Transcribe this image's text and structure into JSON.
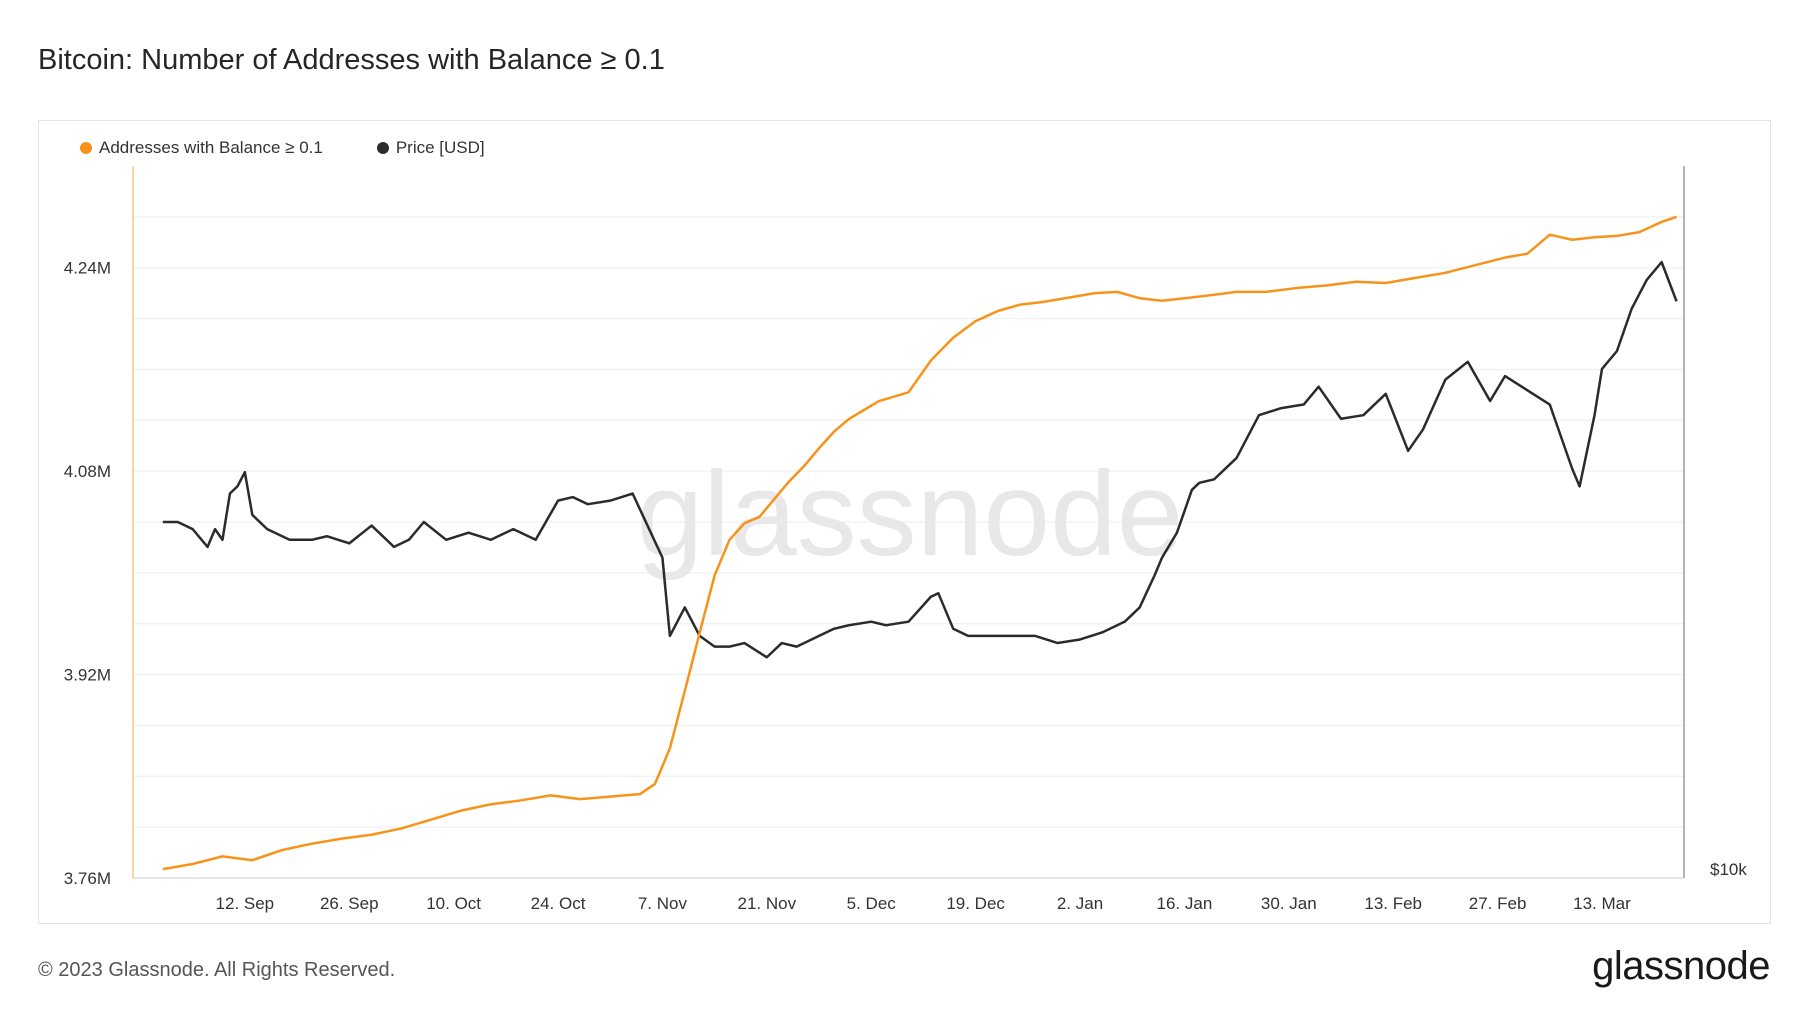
{
  "header": {
    "title": "Bitcoin: Number of Addresses with Balance ≥ 0.1"
  },
  "footer": {
    "copyright": "© 2023 Glassnode. All Rights Reserved.",
    "logo": "glassnode"
  },
  "watermark": "glassnode",
  "colors": {
    "addresses": "#f7931a",
    "price": "#2b2b2b",
    "grid": "#eeeeee",
    "axis": "#f3c98d"
  },
  "chart_data": {
    "type": "line",
    "title": "Bitcoin: Number of Addresses with Balance ≥ 0.1",
    "legend_position": "top-left",
    "grid": true,
    "x_ticks": [
      "12. Sep",
      "26. Sep",
      "10. Oct",
      "24. Oct",
      "7. Nov",
      "21. Nov",
      "5. Dec",
      "19. Dec",
      "2. Jan",
      "16. Jan",
      "30. Jan",
      "13. Feb",
      "27. Feb",
      "13. Mar"
    ],
    "y_ticks": [
      "4.24M",
      "4.08M",
      "3.92M",
      "3.76M"
    ],
    "ylim": [
      3.76,
      4.32
    ],
    "y_unit": "M",
    "right_axis_label": "$10k",
    "series": [
      {
        "name": "Addresses with Balance ≥ 0.1",
        "x": [
          "2022-09-01",
          "2022-09-05",
          "2022-09-09",
          "2022-09-13",
          "2022-09-17",
          "2022-09-21",
          "2022-09-25",
          "2022-09-29",
          "2022-10-03",
          "2022-10-07",
          "2022-10-11",
          "2022-10-15",
          "2022-10-19",
          "2022-10-23",
          "2022-10-27",
          "2022-10-31",
          "2022-11-04",
          "2022-11-06",
          "2022-11-08",
          "2022-11-10",
          "2022-11-12",
          "2022-11-14",
          "2022-11-16",
          "2022-11-18",
          "2022-11-20",
          "2022-11-22",
          "2022-11-24",
          "2022-11-26",
          "2022-11-28",
          "2022-11-30",
          "2022-12-02",
          "2022-12-04",
          "2022-12-06",
          "2022-12-10",
          "2022-12-13",
          "2022-12-16",
          "2022-12-19",
          "2022-12-22",
          "2022-12-25",
          "2022-12-28",
          "2023-01-01",
          "2023-01-04",
          "2023-01-07",
          "2023-01-10",
          "2023-01-13",
          "2023-01-16",
          "2023-01-19",
          "2023-01-23",
          "2023-01-27",
          "2023-01-31",
          "2023-02-04",
          "2023-02-08",
          "2023-02-12",
          "2023-02-16",
          "2023-02-20",
          "2023-02-24",
          "2023-02-28",
          "2023-03-03",
          "2023-03-06",
          "2023-03-09",
          "2023-03-12",
          "2023-03-15",
          "2023-03-18",
          "2023-03-21",
          "2023-03-23"
        ],
        "values": [
          3.767,
          3.771,
          3.777,
          3.774,
          3.782,
          3.787,
          3.791,
          3.794,
          3.799,
          3.806,
          3.813,
          3.818,
          3.821,
          3.825,
          3.822,
          3.824,
          3.826,
          3.834,
          3.862,
          3.907,
          3.953,
          3.998,
          4.026,
          4.039,
          4.044,
          4.058,
          4.072,
          4.084,
          4.098,
          4.111,
          4.121,
          4.128,
          4.135,
          4.142,
          4.167,
          4.185,
          4.198,
          4.206,
          4.211,
          4.213,
          4.217,
          4.22,
          4.221,
          4.216,
          4.214,
          4.216,
          4.218,
          4.221,
          4.221,
          4.224,
          4.226,
          4.229,
          4.228,
          4.232,
          4.236,
          4.242,
          4.248,
          4.251,
          4.266,
          4.262,
          4.264,
          4.265,
          4.268,
          4.276,
          4.28
        ],
        "color": "#f7931a"
      },
      {
        "name": "Price [USD]",
        "x": [
          "2022-09-01",
          "2022-09-03",
          "2022-09-05",
          "2022-09-07",
          "2022-09-08",
          "2022-09-09",
          "2022-09-10",
          "2022-09-11",
          "2022-09-12",
          "2022-09-13",
          "2022-09-15",
          "2022-09-18",
          "2022-09-21",
          "2022-09-23",
          "2022-09-26",
          "2022-09-29",
          "2022-10-02",
          "2022-10-04",
          "2022-10-06",
          "2022-10-09",
          "2022-10-12",
          "2022-10-15",
          "2022-10-18",
          "2022-10-21",
          "2022-10-24",
          "2022-10-26",
          "2022-10-28",
          "2022-10-31",
          "2022-11-03",
          "2022-11-05",
          "2022-11-07",
          "2022-11-08",
          "2022-11-09",
          "2022-11-10",
          "2022-11-12",
          "2022-11-14",
          "2022-11-16",
          "2022-11-18",
          "2022-11-21",
          "2022-11-23",
          "2022-11-25",
          "2022-11-28",
          "2022-11-30",
          "2022-12-02",
          "2022-12-05",
          "2022-12-07",
          "2022-12-10",
          "2022-12-13",
          "2022-12-14",
          "2022-12-16",
          "2022-12-18",
          "2022-12-21",
          "2022-12-24",
          "2022-12-27",
          "2022-12-30",
          "2023-01-02",
          "2023-01-05",
          "2023-01-08",
          "2023-01-10",
          "2023-01-12",
          "2023-01-13",
          "2023-01-15",
          "2023-01-17",
          "2023-01-18",
          "2023-01-20",
          "2023-01-23",
          "2023-01-26",
          "2023-01-29",
          "2023-02-01",
          "2023-02-03",
          "2023-02-06",
          "2023-02-09",
          "2023-02-12",
          "2023-02-15",
          "2023-02-17",
          "2023-02-20",
          "2023-02-23",
          "2023-02-26",
          "2023-02-28",
          "2023-03-03",
          "2023-03-06",
          "2023-03-09",
          "2023-03-10",
          "2023-03-12",
          "2023-03-13",
          "2023-03-15",
          "2023-03-17",
          "2023-03-19",
          "2023-03-21",
          "2023-03-23"
        ],
        "values": [
          2.0,
          2.0,
          1.98,
          1.93,
          1.98,
          1.95,
          2.08,
          2.1,
          2.14,
          2.02,
          1.98,
          1.95,
          1.95,
          1.96,
          1.94,
          1.99,
          1.93,
          1.95,
          2.0,
          1.95,
          1.97,
          1.95,
          1.98,
          1.95,
          2.06,
          2.07,
          2.05,
          2.06,
          2.08,
          1.99,
          1.9,
          1.68,
          1.72,
          1.76,
          1.68,
          1.65,
          1.65,
          1.66,
          1.62,
          1.66,
          1.65,
          1.68,
          1.7,
          1.71,
          1.72,
          1.71,
          1.72,
          1.79,
          1.8,
          1.7,
          1.68,
          1.68,
          1.68,
          1.68,
          1.66,
          1.67,
          1.69,
          1.72,
          1.76,
          1.85,
          1.9,
          1.97,
          2.09,
          2.11,
          2.12,
          2.18,
          2.3,
          2.32,
          2.33,
          2.38,
          2.29,
          2.3,
          2.36,
          2.2,
          2.26,
          2.4,
          2.45,
          2.34,
          2.41,
          2.37,
          2.33,
          2.15,
          2.1,
          2.3,
          2.43,
          2.48,
          2.6,
          2.68,
          2.73,
          2.62
        ],
        "color": "#2b2b2b"
      }
    ]
  }
}
